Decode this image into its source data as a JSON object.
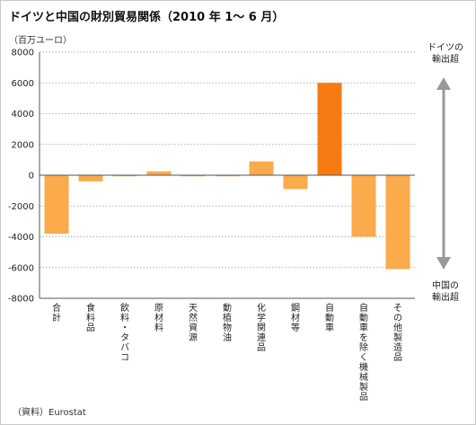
{
  "header": {
    "title": "ドイツと中国の財別貿易関係（2010 年 1～ 6 月）",
    "unit": "（百万ユーロ）"
  },
  "side_labels": {
    "top": [
      "ドイツの",
      "輸出超"
    ],
    "bottom": [
      "中国の",
      "輸出超"
    ]
  },
  "footer": {
    "source": "（資料）Eurostat"
  },
  "colors": {
    "bar_light": "#fbaa4c",
    "bar_dark": "#f77b12",
    "arrow": "#999999",
    "grid": "#9a9a9a",
    "axis": "#555555"
  },
  "chart_data": {
    "type": "bar",
    "title": "ドイツと中国の財別貿易関係（2010 年 1～ 6 月）",
    "ylabel": "（百万ユーロ）",
    "ylim": [
      -8000,
      8000
    ],
    "yticks": [
      8000,
      6000,
      4000,
      2000,
      0,
      -2000,
      -4000,
      -6000,
      -8000
    ],
    "ytick_labels": [
      "8000",
      "6000",
      "4000",
      "2000",
      "0",
      "-2000",
      "-4000",
      "-6000",
      "-8000"
    ],
    "grid": true,
    "categories": [
      "合計",
      "食料品",
      "飲料・タバコ",
      "原材料",
      "天然資源",
      "動植物油",
      "化学関連品",
      "鋼材等",
      "自動車",
      "自動車を除く機械製品",
      "その他製造品"
    ],
    "values": [
      -3800,
      -400,
      -30,
      250,
      -30,
      -40,
      900,
      -900,
      6000,
      -4000,
      -6100
    ]
  }
}
